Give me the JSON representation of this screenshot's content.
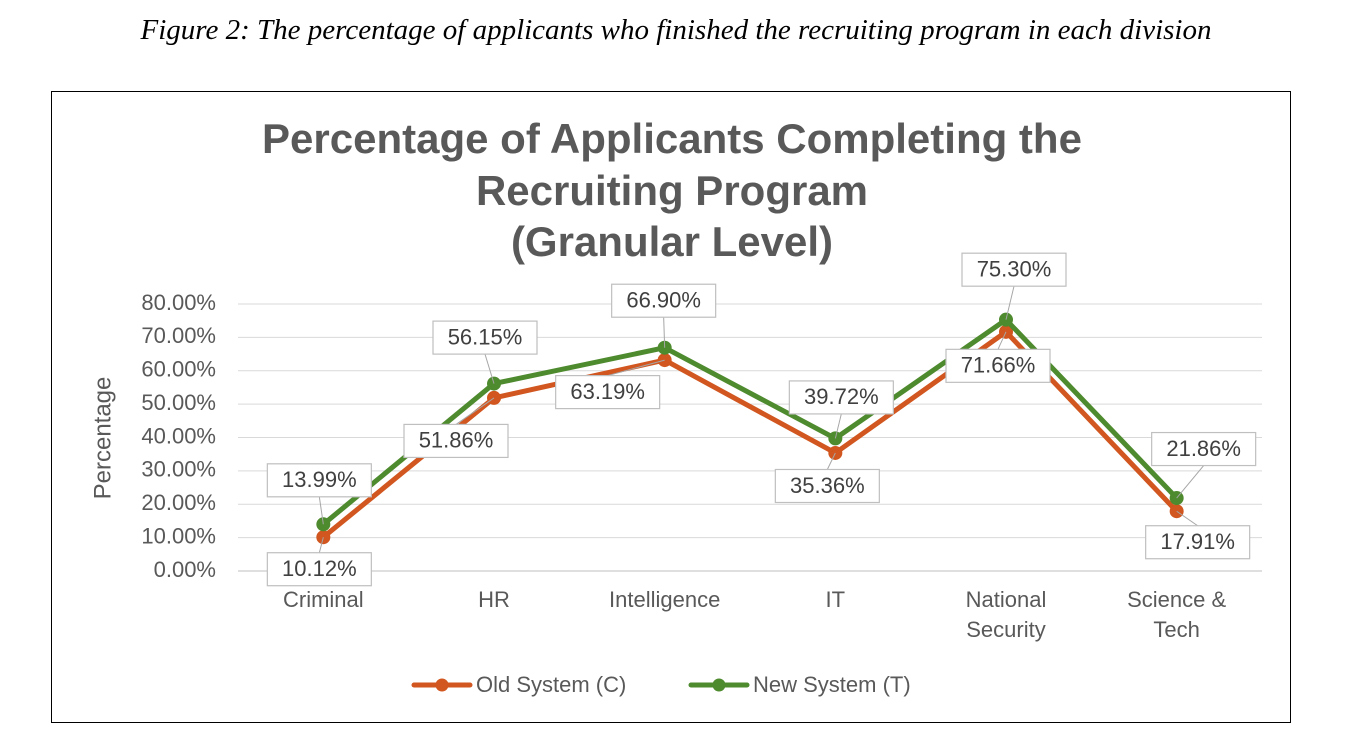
{
  "figure_caption": "Figure 2: The percentage of applicants who finished the recruiting program in each division",
  "chart_data": {
    "type": "line",
    "title_lines": [
      "Percentage of Applicants Completing the",
      "Recruiting Program",
      "(Granular Level)"
    ],
    "xlabel": "",
    "ylabel": "Percentage",
    "ylim": [
      0,
      80
    ],
    "y_ticks": [
      "0.00%",
      "10.00%",
      "20.00%",
      "30.00%",
      "40.00%",
      "50.00%",
      "60.00%",
      "70.00%",
      "80.00%"
    ],
    "categories": [
      [
        "Criminal"
      ],
      [
        "HR"
      ],
      [
        "Intelligence"
      ],
      [
        "IT"
      ],
      [
        "National",
        "Security"
      ],
      [
        "Science &",
        "Tech"
      ]
    ],
    "series": [
      {
        "name": "Old System (C)",
        "color": "#D1561F",
        "values": [
          10.12,
          51.86,
          63.19,
          35.36,
          71.66,
          17.91
        ],
        "labels": [
          "10.12%",
          "51.86%",
          "63.19%",
          "35.36%",
          "71.66%",
          "17.91%"
        ]
      },
      {
        "name": "New System (T)",
        "color": "#4E8A2E",
        "values": [
          13.99,
          56.15,
          66.9,
          39.72,
          75.3,
          21.86
        ],
        "labels": [
          "13.99%",
          "56.15%",
          "66.90%",
          "39.72%",
          "75.30%",
          "21.86%"
        ]
      }
    ],
    "grid": true,
    "legend_position": "bottom",
    "data_labels": true
  }
}
